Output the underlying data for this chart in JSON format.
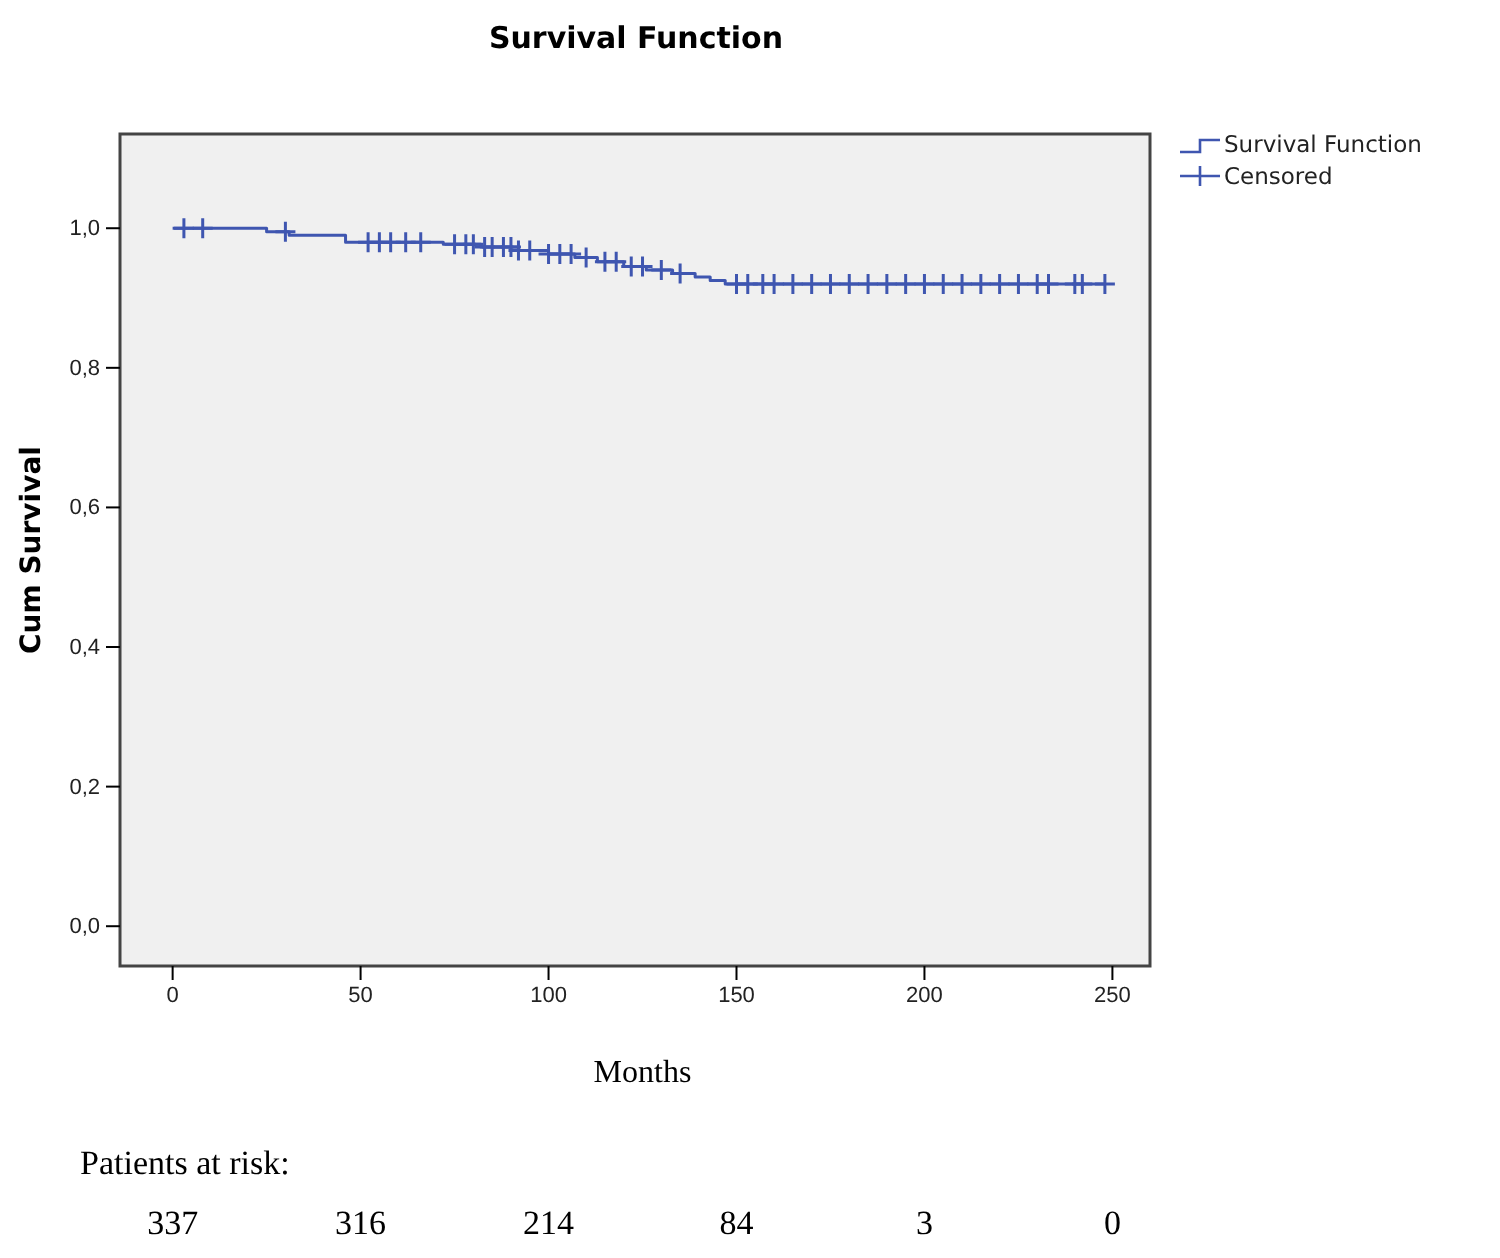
{
  "chart_data": {
    "type": "step",
    "title": "Survival Function",
    "xlabel": "Months",
    "ylabel": "Cum Survival",
    "xlim": [
      -14,
      260
    ],
    "xticks": [
      0,
      50,
      100,
      150,
      200,
      250
    ],
    "ylim": [
      -0.057,
      1.135
    ],
    "yticks": [
      {
        "value": 0,
        "label": "0,0"
      },
      {
        "value": 0.2,
        "label": "0,2"
      },
      {
        "value": 0.4,
        "label": "0,4"
      },
      {
        "value": 0.6,
        "label": "0,6"
      },
      {
        "value": 0.8,
        "label": "0,8"
      },
      {
        "value": 1,
        "label": "1,0"
      }
    ],
    "grid": false,
    "legend": "top right",
    "series": [
      {
        "name": "Survival Function",
        "color": "#3f56b0",
        "marker": "none",
        "x": [
          0,
          25,
          31,
          46,
          72,
          82,
          92,
          100,
          107,
          113,
          120,
          126,
          133,
          139,
          143,
          147,
          248
        ],
        "values": [
          1,
          0.995,
          0.99,
          0.98,
          0.977,
          0.973,
          0.968,
          0.963,
          0.958,
          0.952,
          0.945,
          0.94,
          0.935,
          0.93,
          0.925,
          0.92,
          0.92
        ]
      },
      {
        "name": "Censored",
        "type": "scatter",
        "color": "#3f56b0",
        "marker": "cross",
        "x": [
          3,
          8,
          30,
          52,
          55,
          58,
          62,
          66,
          75,
          78,
          80,
          83,
          85,
          88,
          90,
          92,
          95,
          100,
          103,
          106,
          110,
          115,
          118,
          122,
          125,
          130,
          135,
          150,
          153,
          157,
          160,
          165,
          170,
          175,
          180,
          185,
          190,
          195,
          200,
          205,
          210,
          215,
          220,
          225,
          230,
          233,
          240,
          242,
          248
        ],
        "values": [
          1,
          1,
          0.995,
          0.98,
          0.98,
          0.98,
          0.98,
          0.98,
          0.977,
          0.977,
          0.977,
          0.973,
          0.973,
          0.973,
          0.973,
          0.968,
          0.968,
          0.963,
          0.963,
          0.963,
          0.958,
          0.952,
          0.952,
          0.945,
          0.945,
          0.94,
          0.935,
          0.92,
          0.92,
          0.92,
          0.92,
          0.92,
          0.92,
          0.92,
          0.92,
          0.92,
          0.92,
          0.92,
          0.92,
          0.92,
          0.92,
          0.92,
          0.92,
          0.92,
          0.92,
          0.92,
          0.92,
          0.92,
          0.92
        ]
      }
    ],
    "annotations": [
      "Patients at risk:",
      "337",
      "316",
      "214",
      "84",
      "3",
      "0"
    ]
  }
}
